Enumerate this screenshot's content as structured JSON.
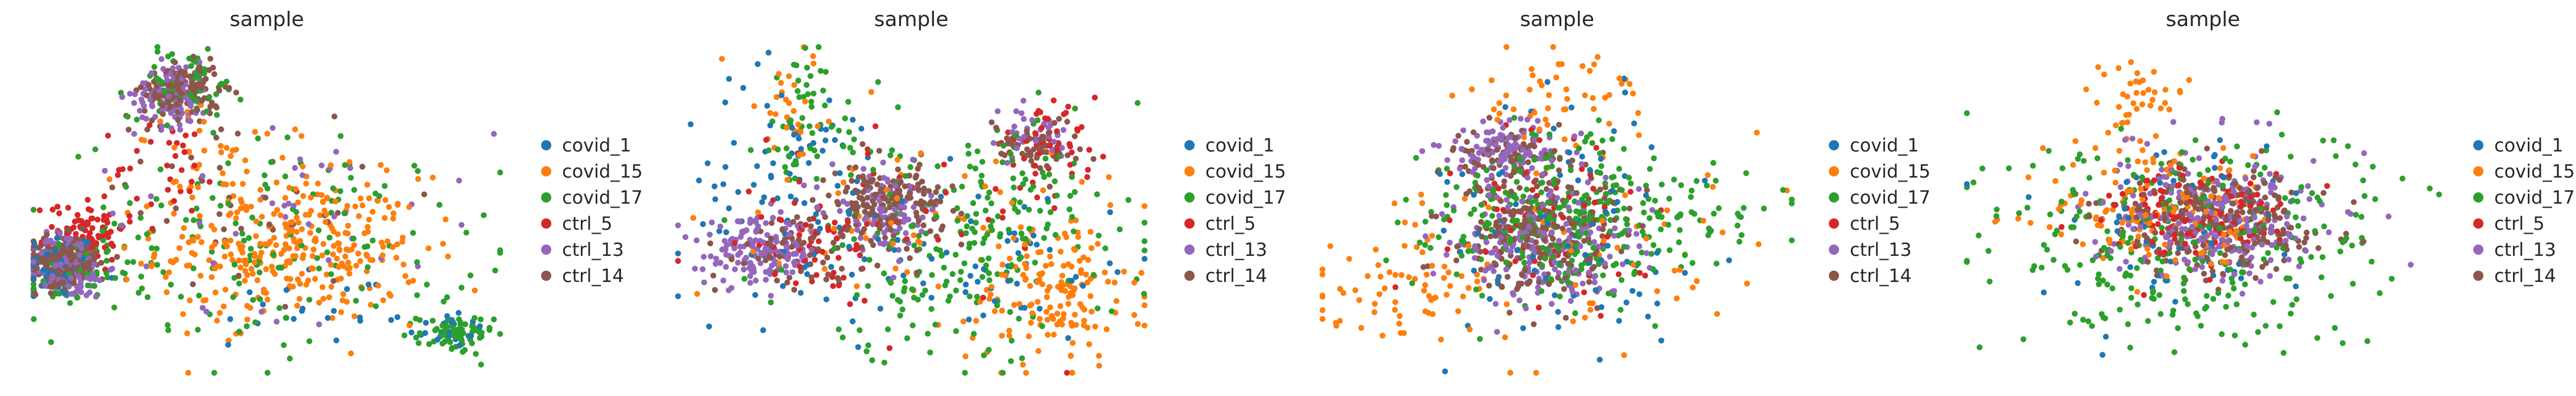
{
  "chart_data": [
    {
      "type": "scatter",
      "title": "sample",
      "xlabel": "",
      "ylabel": "",
      "grid": false,
      "axes_visible": false,
      "legend_position": "right",
      "categories": [
        "covid_1",
        "covid_15",
        "covid_17",
        "ctrl_5",
        "ctrl_13",
        "ctrl_14"
      ],
      "colors": [
        "#1f77b4",
        "#ff7f0e",
        "#2ca02c",
        "#d62728",
        "#9467bd",
        "#8c564b"
      ],
      "xlim": [
        0,
        100
      ],
      "ylim": [
        0,
        100
      ],
      "series": [
        {
          "name": "covid_1",
          "clusters": [
            {
              "x": 6,
              "y": 33,
              "sx": 4,
              "sy": 5,
              "n": 70
            },
            {
              "x": 88,
              "y": 14,
              "sx": 4,
              "sy": 3,
              "n": 25
            },
            {
              "x": 60,
              "y": 20,
              "sx": 15,
              "sy": 8,
              "n": 20
            }
          ]
        },
        {
          "name": "covid_15",
          "clusters": [
            {
              "x": 55,
              "y": 38,
              "sx": 14,
              "sy": 11,
              "n": 330
            },
            {
              "x": 40,
              "y": 65,
              "sx": 10,
              "sy": 8,
              "n": 40
            }
          ]
        },
        {
          "name": "covid_17",
          "clusters": [
            {
              "x": 50,
              "y": 40,
              "sx": 22,
              "sy": 16,
              "n": 160
            },
            {
              "x": 90,
              "y": 12,
              "sx": 4,
              "sy": 3,
              "n": 70
            },
            {
              "x": 33,
              "y": 88,
              "sx": 6,
              "sy": 5,
              "n": 60
            },
            {
              "x": 10,
              "y": 30,
              "sx": 6,
              "sy": 6,
              "n": 50
            }
          ]
        },
        {
          "name": "ctrl_5",
          "clusters": [
            {
              "x": 12,
              "y": 45,
              "sx": 4,
              "sy": 5,
              "n": 80
            },
            {
              "x": 30,
              "y": 62,
              "sx": 6,
              "sy": 8,
              "n": 30
            }
          ]
        },
        {
          "name": "ctrl_13",
          "clusters": [
            {
              "x": 8,
              "y": 33,
              "sx": 4,
              "sy": 5,
              "n": 160
            },
            {
              "x": 30,
              "y": 85,
              "sx": 4,
              "sy": 5,
              "n": 100
            },
            {
              "x": 55,
              "y": 50,
              "sx": 22,
              "sy": 15,
              "n": 40
            }
          ]
        },
        {
          "name": "ctrl_14",
          "clusters": [
            {
              "x": 7,
              "y": 34,
              "sx": 3.5,
              "sy": 4,
              "n": 230
            },
            {
              "x": 32,
              "y": 86,
              "sx": 4,
              "sy": 4,
              "n": 160
            },
            {
              "x": 45,
              "y": 55,
              "sx": 15,
              "sy": 14,
              "n": 40
            }
          ]
        }
      ]
    },
    {
      "type": "scatter",
      "title": "sample",
      "xlabel": "",
      "ylabel": "",
      "grid": false,
      "axes_visible": false,
      "legend_position": "right",
      "categories": [
        "covid_1",
        "covid_15",
        "covid_17",
        "ctrl_5",
        "ctrl_13",
        "ctrl_14"
      ],
      "colors": [
        "#1f77b4",
        "#ff7f0e",
        "#2ca02c",
        "#d62728",
        "#9467bd",
        "#8c564b"
      ],
      "xlim": [
        0,
        100
      ],
      "ylim": [
        0,
        100
      ],
      "series": [
        {
          "name": "covid_1",
          "clusters": [
            {
              "x": 25,
              "y": 55,
              "sx": 12,
              "sy": 18,
              "n": 100
            },
            {
              "x": 70,
              "y": 35,
              "sx": 14,
              "sy": 12,
              "n": 50
            }
          ]
        },
        {
          "name": "covid_15",
          "clusters": [
            {
              "x": 80,
              "y": 25,
              "sx": 9,
              "sy": 12,
              "n": 160
            },
            {
              "x": 25,
              "y": 80,
              "sx": 7,
              "sy": 10,
              "n": 30
            },
            {
              "x": 50,
              "y": 45,
              "sx": 15,
              "sy": 12,
              "n": 50
            }
          ]
        },
        {
          "name": "covid_17",
          "clusters": [
            {
              "x": 60,
              "y": 35,
              "sx": 18,
              "sy": 15,
              "n": 180
            },
            {
              "x": 28,
              "y": 75,
              "sx": 8,
              "sy": 12,
              "n": 60
            },
            {
              "x": 75,
              "y": 60,
              "sx": 12,
              "sy": 10,
              "n": 50
            }
          ]
        },
        {
          "name": "ctrl_5",
          "clusters": [
            {
              "x": 30,
              "y": 40,
              "sx": 8,
              "sy": 6,
              "n": 60
            },
            {
              "x": 78,
              "y": 70,
              "sx": 6,
              "sy": 5,
              "n": 50
            },
            {
              "x": 50,
              "y": 50,
              "sx": 20,
              "sy": 15,
              "n": 40
            }
          ]
        },
        {
          "name": "ctrl_13",
          "clusters": [
            {
              "x": 18,
              "y": 37,
              "sx": 6,
              "sy": 5,
              "n": 160
            },
            {
              "x": 45,
              "y": 50,
              "sx": 6,
              "sy": 6,
              "n": 90
            },
            {
              "x": 75,
              "y": 72,
              "sx": 5,
              "sy": 4,
              "n": 40
            }
          ]
        },
        {
          "name": "ctrl_14",
          "clusters": [
            {
              "x": 45,
              "y": 52,
              "sx": 6,
              "sy": 6,
              "n": 170
            },
            {
              "x": 25,
              "y": 38,
              "sx": 7,
              "sy": 5,
              "n": 60
            },
            {
              "x": 76,
              "y": 70,
              "sx": 5,
              "sy": 4,
              "n": 60
            }
          ]
        }
      ]
    },
    {
      "type": "scatter",
      "title": "sample",
      "xlabel": "",
      "ylabel": "",
      "grid": false,
      "axes_visible": false,
      "legend_position": "right",
      "categories": [
        "covid_1",
        "covid_15",
        "covid_17",
        "ctrl_5",
        "ctrl_13",
        "ctrl_14"
      ],
      "colors": [
        "#1f77b4",
        "#ff7f0e",
        "#2ca02c",
        "#d62728",
        "#9467bd",
        "#8c564b"
      ],
      "xlim": [
        0,
        100
      ],
      "ylim": [
        0,
        100
      ],
      "series": [
        {
          "name": "covid_1",
          "clusters": [
            {
              "x": 50,
              "y": 45,
              "sx": 15,
              "sy": 18,
              "n": 90
            }
          ]
        },
        {
          "name": "covid_15",
          "clusters": [
            {
              "x": 52,
              "y": 85,
              "sx": 9,
              "sy": 8,
              "n": 50
            },
            {
              "x": 18,
              "y": 25,
              "sx": 10,
              "sy": 8,
              "n": 70
            },
            {
              "x": 60,
              "y": 40,
              "sx": 20,
              "sy": 18,
              "n": 60
            }
          ]
        },
        {
          "name": "covid_17",
          "clusters": [
            {
              "x": 50,
              "y": 48,
              "sx": 14,
              "sy": 12,
              "n": 300
            },
            {
              "x": 80,
              "y": 48,
              "sx": 12,
              "sy": 6,
              "n": 40
            }
          ]
        },
        {
          "name": "ctrl_5",
          "clusters": [
            {
              "x": 48,
              "y": 47,
              "sx": 10,
              "sy": 11,
              "n": 80
            }
          ]
        },
        {
          "name": "ctrl_13",
          "clusters": [
            {
              "x": 40,
              "y": 68,
              "sx": 6,
              "sy": 5,
              "n": 130
            },
            {
              "x": 48,
              "y": 38,
              "sx": 10,
              "sy": 9,
              "n": 170
            }
          ]
        },
        {
          "name": "ctrl_14",
          "clusters": [
            {
              "x": 48,
              "y": 42,
              "sx": 9,
              "sy": 10,
              "n": 230
            },
            {
              "x": 40,
              "y": 66,
              "sx": 6,
              "sy": 5,
              "n": 70
            }
          ]
        }
      ]
    },
    {
      "type": "scatter",
      "title": "sample",
      "xlabel": "",
      "ylabel": "",
      "grid": false,
      "axes_visible": false,
      "legend_position": "right",
      "categories": [
        "covid_1",
        "covid_15",
        "covid_17",
        "ctrl_5",
        "ctrl_13",
        "ctrl_14"
      ],
      "colors": [
        "#1f77b4",
        "#ff7f0e",
        "#2ca02c",
        "#d62728",
        "#9467bd",
        "#8c564b"
      ],
      "xlim": [
        0,
        100
      ],
      "ylim": [
        0,
        100
      ],
      "series": [
        {
          "name": "covid_1",
          "clusters": [
            {
              "x": 45,
              "y": 45,
              "sx": 16,
              "sy": 14,
              "n": 70
            }
          ]
        },
        {
          "name": "covid_15",
          "clusters": [
            {
              "x": 40,
              "y": 50,
              "sx": 12,
              "sy": 10,
              "n": 140
            },
            {
              "x": 37,
              "y": 85,
              "sx": 5,
              "sy": 7,
              "n": 40
            }
          ]
        },
        {
          "name": "covid_17",
          "clusters": [
            {
              "x": 45,
              "y": 42,
              "sx": 22,
              "sy": 16,
              "n": 300
            }
          ]
        },
        {
          "name": "ctrl_5",
          "clusters": [
            {
              "x": 48,
              "y": 48,
              "sx": 10,
              "sy": 8,
              "n": 120
            }
          ]
        },
        {
          "name": "ctrl_13",
          "clusters": [
            {
              "x": 52,
              "y": 48,
              "sx": 11,
              "sy": 9,
              "n": 260
            }
          ]
        },
        {
          "name": "ctrl_14",
          "clusters": [
            {
              "x": 52,
              "y": 47,
              "sx": 10,
              "sy": 8,
              "n": 260
            }
          ]
        }
      ]
    }
  ]
}
